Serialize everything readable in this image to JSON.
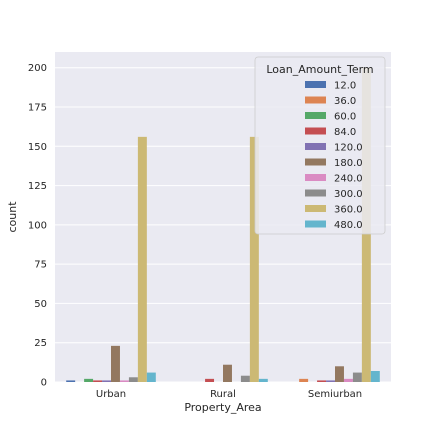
{
  "chart_data": {
    "type": "bar",
    "xlabel": "Property_Area",
    "ylabel": "count",
    "categories": [
      "Urban",
      "Rural",
      "Semiurban"
    ],
    "ylim": [
      0,
      210
    ],
    "yticks": [
      0,
      25,
      50,
      75,
      100,
      125,
      150,
      175,
      200
    ],
    "grid": true,
    "legend": {
      "title": "Loan_Amount_Term",
      "placement": "top-right"
    },
    "series": [
      {
        "name": "12.0",
        "color": "#4c72b0",
        "values": [
          1,
          0,
          0
        ]
      },
      {
        "name": "36.0",
        "color": "#dd8452",
        "values": [
          0,
          0,
          2
        ]
      },
      {
        "name": "60.0",
        "color": "#55a868",
        "values": [
          2,
          0,
          0
        ]
      },
      {
        "name": "84.0",
        "color": "#c44e52",
        "values": [
          1,
          2,
          1
        ]
      },
      {
        "name": "120.0",
        "color": "#8172b3",
        "values": [
          1,
          0,
          1
        ]
      },
      {
        "name": "180.0",
        "color": "#937860",
        "values": [
          23,
          11,
          10
        ]
      },
      {
        "name": "240.0",
        "color": "#da8bc3",
        "values": [
          1,
          0,
          2
        ]
      },
      {
        "name": "300.0",
        "color": "#8c8c8c",
        "values": [
          3,
          4,
          6
        ]
      },
      {
        "name": "360.0",
        "color": "#ccb974",
        "values": [
          156,
          156,
          200
        ]
      },
      {
        "name": "480.0",
        "color": "#64b5cd",
        "values": [
          6,
          2,
          7
        ]
      }
    ]
  }
}
